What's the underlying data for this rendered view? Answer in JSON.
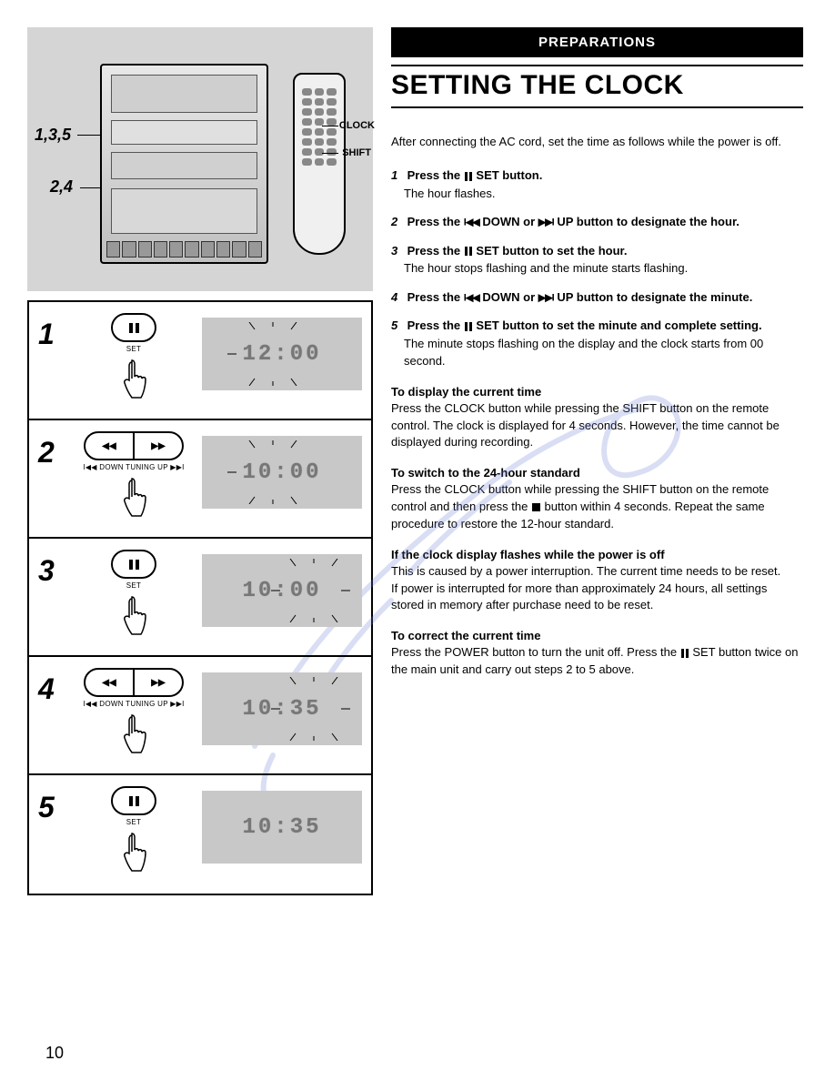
{
  "section_tag": "PREPARATIONS",
  "section_title": "SETTING THE CLOCK",
  "intro": "After connecting the AC cord, set the time as follows while the power is off.",
  "diagram": {
    "callout_left_1": "1,3,5",
    "callout_left_2": "2,4",
    "callout_right_1": "CLOCK",
    "callout_right_2": "SHIFT",
    "stereo_color": "#cfcfcf",
    "bg_color": "#d5d5d5"
  },
  "steps": [
    {
      "num": "1",
      "control": "set",
      "sublabel": "SET",
      "display": "12:00",
      "flash": "hour"
    },
    {
      "num": "2",
      "control": "tuning",
      "sublabel": "I◀◀ DOWN TUNING UP ▶▶I",
      "display": "10:00",
      "flash": "hour"
    },
    {
      "num": "3",
      "control": "set",
      "sublabel": "SET",
      "display": "10:00",
      "flash": "minute"
    },
    {
      "num": "4",
      "control": "tuning",
      "sublabel": "I◀◀ DOWN TUNING UP ▶▶I",
      "display": "10:35",
      "flash": "minute"
    },
    {
      "num": "5",
      "control": "set",
      "sublabel": "SET",
      "display": "10:35",
      "flash": "none"
    }
  ],
  "instructions": [
    {
      "n": "1",
      "bold": "Press the ∥ SET button.",
      "sub": "The hour flashes."
    },
    {
      "n": "2",
      "bold": "Press the I◀◀ DOWN or ▶▶I UP button to designate the hour.",
      "sub": ""
    },
    {
      "n": "3",
      "bold": "Press the ∥ SET button to set the hour.",
      "sub": "The hour stops flashing and  the minute starts flashing."
    },
    {
      "n": "4",
      "bold": "Press the I◀◀ DOWN or ▶▶I UP button to designate the minute.",
      "sub": ""
    },
    {
      "n": "5",
      "bold": "Press the ∥ SET button to set the minute and complete setting.",
      "sub": "The minute stops flashing on the display and the clock starts from 00 second."
    }
  ],
  "sections": [
    {
      "head": "To display the current time",
      "body": "Press the CLOCK button while pressing the SHIFT button on the remote control.  The clock is displayed for 4 seconds. However, the time cannot be displayed during recording."
    },
    {
      "head": "To switch to the 24-hour standard",
      "body": "Press the CLOCK button while pressing the SHIFT button on the remote control and then press the ■ button within 4 seconds. Repeat the same procedure to restore the 12-hour standard."
    },
    {
      "head": "If the clock display flashes while the power is off",
      "body": "This is caused by a power interruption. The current time needs to be reset.\nIf power is interrupted for more than approximately 24 hours, all settings stored in memory after purchase need to be reset."
    },
    {
      "head": "To correct the current time",
      "body": "Press the POWER button to turn the unit off. Press the ∥ SET button twice on the main unit and carry out steps 2 to 5 above."
    }
  ],
  "page_number": "10",
  "colors": {
    "text": "#000000",
    "panel_bg": "#c8c8c8",
    "lcd_text": "#777777",
    "watermark": "#6a7fd6"
  },
  "fonts": {
    "title_family": "Arial Narrow",
    "title_size_pt": 22,
    "body_size_pt": 10,
    "step_num_size_pt": 24
  }
}
